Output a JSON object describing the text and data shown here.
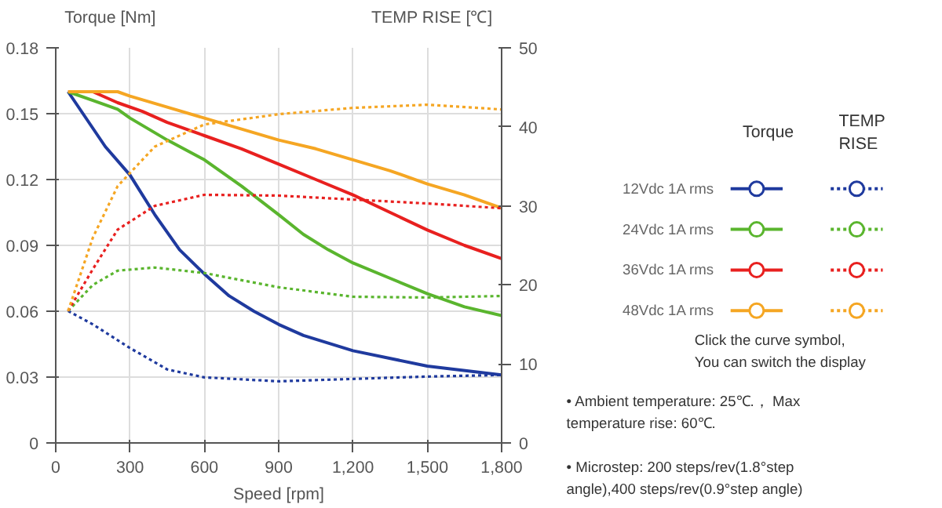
{
  "chart_data": {
    "type": "line",
    "xlabel": "Speed [rpm]",
    "ylabel": "Torque  [Nm]",
    "y2label": "TEMP RISE [℃]",
    "xlim": [
      0,
      1800
    ],
    "xticks": [
      0,
      300,
      600,
      900,
      {
        "value": 1200,
        "label": "1,200"
      },
      {
        "value": 1500,
        "label": "1,500"
      },
      {
        "value": 1800,
        "label": "1,800"
      }
    ],
    "ylim": [
      0,
      0.18
    ],
    "yticks": [
      0,
      0.03,
      0.06,
      0.09,
      0.12,
      0.15,
      0.18
    ],
    "y2lim": [
      0,
      50
    ],
    "y2ticks": [
      0,
      10,
      20,
      30,
      40,
      50
    ],
    "grid": true,
    "legend": "right",
    "annotations": [
      "Torque",
      "TEMP\nRISE",
      "Click the curve symbol,\nYou can switch the display",
      "•  Ambient temperature: 25℃.， Max\ntemperature rise: 60℃.",
      "•  Microstep: 200 steps/rev(1.8°step\nangle),400 steps/rev(0.9°step angle)"
    ],
    "series": [
      {
        "name": "12Vdc   1A rms",
        "color": "#1f3a9e",
        "line_style": "solid",
        "x": [
          50,
          200,
          300,
          400,
          500,
          600,
          700,
          800,
          900,
          1000,
          1200,
          1500,
          1800
        ],
        "values": [
          0.16,
          0.135,
          0.122,
          0.104,
          0.088,
          0.077,
          0.067,
          0.06,
          0.054,
          0.049,
          0.042,
          0.035,
          0.031
        ]
      },
      {
        "name": "24Vdc   1A rms",
        "color": "#5ab52e",
        "line_style": "solid",
        "x": [
          50,
          150,
          250,
          300,
          450,
          600,
          750,
          900,
          1000,
          1100,
          1200,
          1350,
          1500,
          1650,
          1800
        ],
        "values": [
          0.16,
          0.156,
          0.152,
          0.148,
          0.138,
          0.129,
          0.117,
          0.104,
          0.095,
          0.088,
          0.082,
          0.075,
          0.068,
          0.062,
          0.058
        ]
      },
      {
        "name": "36Vdc   1A rms",
        "color": "#e8201f",
        "line_style": "solid",
        "x": [
          50,
          150,
          250,
          350,
          450,
          600,
          750,
          900,
          1050,
          1200,
          1350,
          1500,
          1650,
          1800
        ],
        "values": [
          0.16,
          0.16,
          0.155,
          0.151,
          0.146,
          0.14,
          0.134,
          0.127,
          0.12,
          0.113,
          0.105,
          0.097,
          0.09,
          0.084
        ]
      },
      {
        "name": "48Vdc   1A rms",
        "color": "#f5a623",
        "line_style": "solid",
        "x": [
          50,
          250,
          300,
          450,
          600,
          750,
          900,
          1050,
          1200,
          1350,
          1500,
          1650,
          1800
        ],
        "values": [
          0.16,
          0.16,
          0.158,
          0.153,
          0.148,
          0.143,
          0.138,
          0.134,
          0.129,
          0.124,
          0.118,
          0.113,
          0.107
        ]
      },
      {
        "color": "#1f3a9e",
        "axis": "y2",
        "line_style": "dotted",
        "x": [
          50,
          150,
          300,
          450,
          600,
          900,
          1200,
          1500,
          1800
        ],
        "values": [
          16.7,
          15,
          12,
          9.3,
          8.3,
          7.8,
          8.1,
          8.4,
          8.6
        ]
      },
      {
        "color": "#5ab52e",
        "axis": "y2",
        "line_style": "dotted",
        "x": [
          50,
          150,
          250,
          400,
          600,
          900,
          1200,
          1500,
          1800
        ],
        "values": [
          16.7,
          20,
          21.8,
          22.2,
          21.5,
          19.7,
          18.5,
          18.4,
          18.6
        ]
      },
      {
        "color": "#e8201f",
        "axis": "y2",
        "line_style": "dotted",
        "x": [
          50,
          150,
          250,
          400,
          600,
          900,
          1200,
          1500,
          1800
        ],
        "values": [
          16.7,
          22,
          27,
          30,
          31.4,
          31.3,
          30.8,
          30.3,
          29.7
        ]
      },
      {
        "color": "#f5a623",
        "axis": "y2",
        "line_style": "dotted",
        "x": [
          50,
          150,
          250,
          400,
          600,
          900,
          1200,
          1500,
          1800
        ],
        "values": [
          16.7,
          26,
          32.5,
          37.5,
          40.3,
          41.6,
          42.4,
          42.8,
          42.2
        ]
      }
    ]
  }
}
